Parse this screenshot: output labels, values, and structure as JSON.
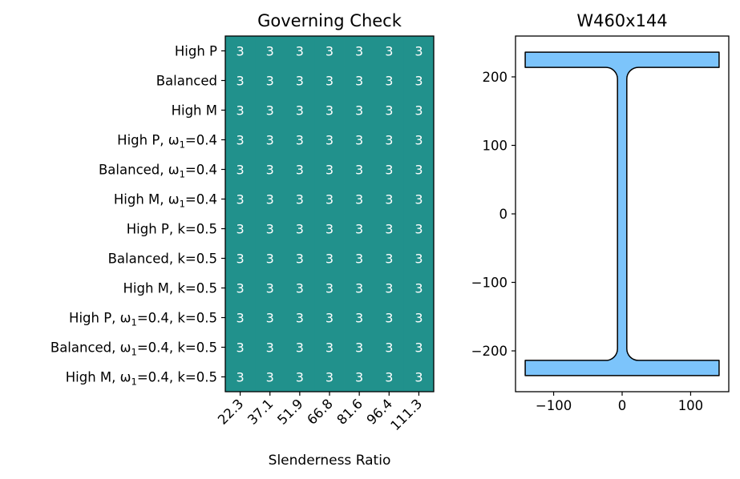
{
  "chart_data": [
    {
      "type": "heatmap",
      "title": "Governing Check",
      "xlabel": "Slenderness Ratio",
      "ylabel": "",
      "x": [
        "22.3",
        "37.1",
        "51.9",
        "66.8",
        "81.6",
        "96.4",
        "111.3"
      ],
      "y": [
        "High P",
        "Balanced",
        "High M",
        "High P, ω1=0.4",
        "Balanced, ω1=0.4",
        "High M, ω1=0.4",
        "High P, k=0.5",
        "Balanced, k=0.5",
        "High M, k=0.5",
        "High P, ω1=0.4, k=0.5",
        "Balanced, ω1=0.4, k=0.5",
        "High M, ω1=0.4, k=0.5"
      ],
      "values": [
        [
          3,
          3,
          3,
          3,
          3,
          3,
          3
        ],
        [
          3,
          3,
          3,
          3,
          3,
          3,
          3
        ],
        [
          3,
          3,
          3,
          3,
          3,
          3,
          3
        ],
        [
          3,
          3,
          3,
          3,
          3,
          3,
          3
        ],
        [
          3,
          3,
          3,
          3,
          3,
          3,
          3
        ],
        [
          3,
          3,
          3,
          3,
          3,
          3,
          3
        ],
        [
          3,
          3,
          3,
          3,
          3,
          3,
          3
        ],
        [
          3,
          3,
          3,
          3,
          3,
          3,
          3
        ],
        [
          3,
          3,
          3,
          3,
          3,
          3,
          3
        ],
        [
          3,
          3,
          3,
          3,
          3,
          3,
          3
        ],
        [
          3,
          3,
          3,
          3,
          3,
          3,
          3
        ],
        [
          3,
          3,
          3,
          3,
          3,
          3,
          3
        ]
      ],
      "cell_color": "#21918c",
      "label_color": "#ffffff"
    },
    {
      "type": "area",
      "title": "W460x144",
      "xlabel": "",
      "ylabel": "",
      "section": {
        "depth": 472,
        "flange_width": 283,
        "flange_thickness": 22.1,
        "web_thickness": 13.6,
        "root_radius": 17
      },
      "xticks": [
        -100,
        0,
        100
      ],
      "yticks": [
        200,
        100,
        0,
        -100,
        -200
      ],
      "xlim": [
        -155.65,
        155.65
      ],
      "ylim": [
        -259.6,
        259.6
      ],
      "fill_color": "#7cc4fb",
      "edge_color": "#000000"
    }
  ]
}
